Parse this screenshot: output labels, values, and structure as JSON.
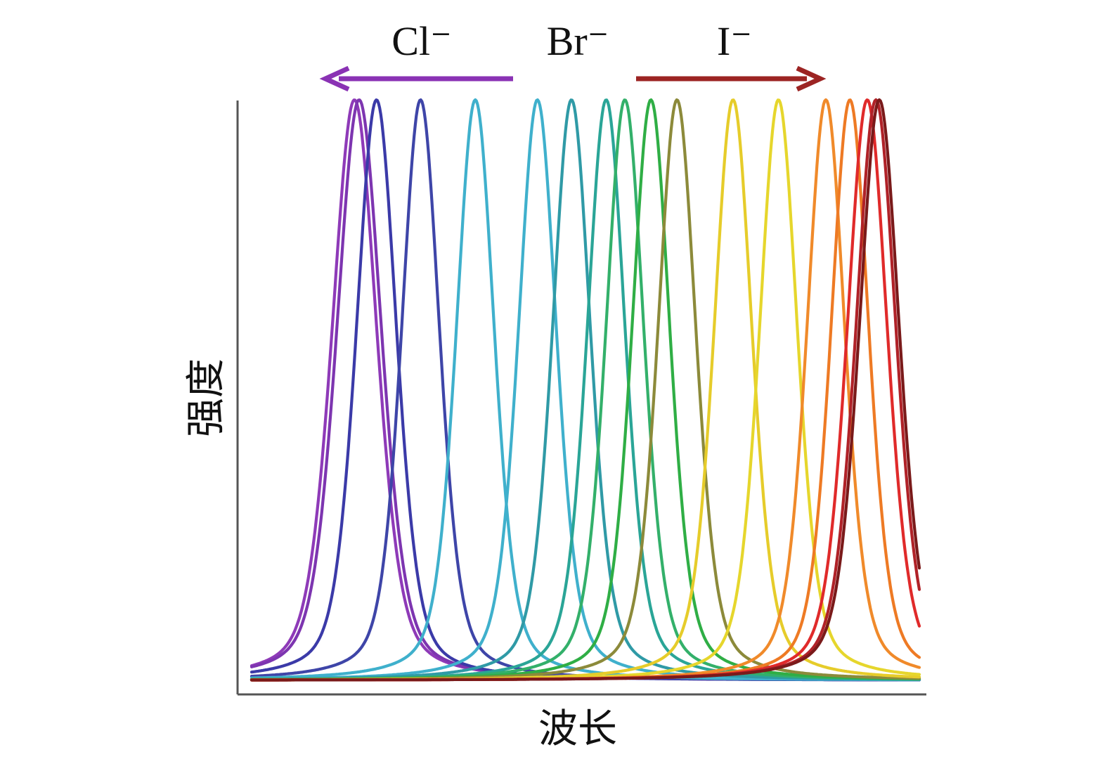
{
  "chart_data": {
    "type": "line",
    "title": "",
    "xlabel": "波长",
    "ylabel": "强度",
    "x_ticks": [],
    "y_ticks": [],
    "grid": false,
    "normalized": true,
    "annotations": {
      "ions": [
        "Cl⁻",
        "Br⁻",
        "I⁻"
      ],
      "left_arrow": {
        "toward": "Cl⁻",
        "direction": "left",
        "color": "#8a32b4"
      },
      "right_arrow": {
        "toward": "I⁻",
        "direction": "right",
        "color": "#9c2423"
      }
    },
    "series": [
      {
        "peak": 0.154,
        "width": 0.04,
        "color": "#8e3ab8"
      },
      {
        "peak": 0.161,
        "width": 0.04,
        "color": "#7d35b0"
      },
      {
        "peak": 0.187,
        "width": 0.036,
        "color": "#3b3aa8"
      },
      {
        "peak": 0.253,
        "width": 0.034,
        "color": "#3e45a8"
      },
      {
        "peak": 0.335,
        "width": 0.034,
        "color": "#3fb0cc"
      },
      {
        "peak": 0.428,
        "width": 0.034,
        "color": "#3fb0cc"
      },
      {
        "peak": 0.479,
        "width": 0.034,
        "color": "#2f9aa6"
      },
      {
        "peak": 0.531,
        "width": 0.034,
        "color": "#2aa597"
      },
      {
        "peak": 0.559,
        "width": 0.034,
        "color": "#33b06a"
      },
      {
        "peak": 0.598,
        "width": 0.034,
        "color": "#2fae45"
      },
      {
        "peak": 0.637,
        "width": 0.034,
        "color": "#8c8a3a"
      },
      {
        "peak": 0.721,
        "width": 0.034,
        "color": "#e6cc2a"
      },
      {
        "peak": 0.789,
        "width": 0.034,
        "color": "#e6d62c"
      },
      {
        "peak": 0.86,
        "width": 0.034,
        "color": "#f08a2a"
      },
      {
        "peak": 0.896,
        "width": 0.034,
        "color": "#ee7a24"
      },
      {
        "peak": 0.922,
        "width": 0.036,
        "color": "#e02a2a"
      },
      {
        "peak": 0.935,
        "width": 0.036,
        "color": "#b02228"
      },
      {
        "peak": 0.94,
        "width": 0.036,
        "color": "#7a1a1a"
      }
    ]
  }
}
